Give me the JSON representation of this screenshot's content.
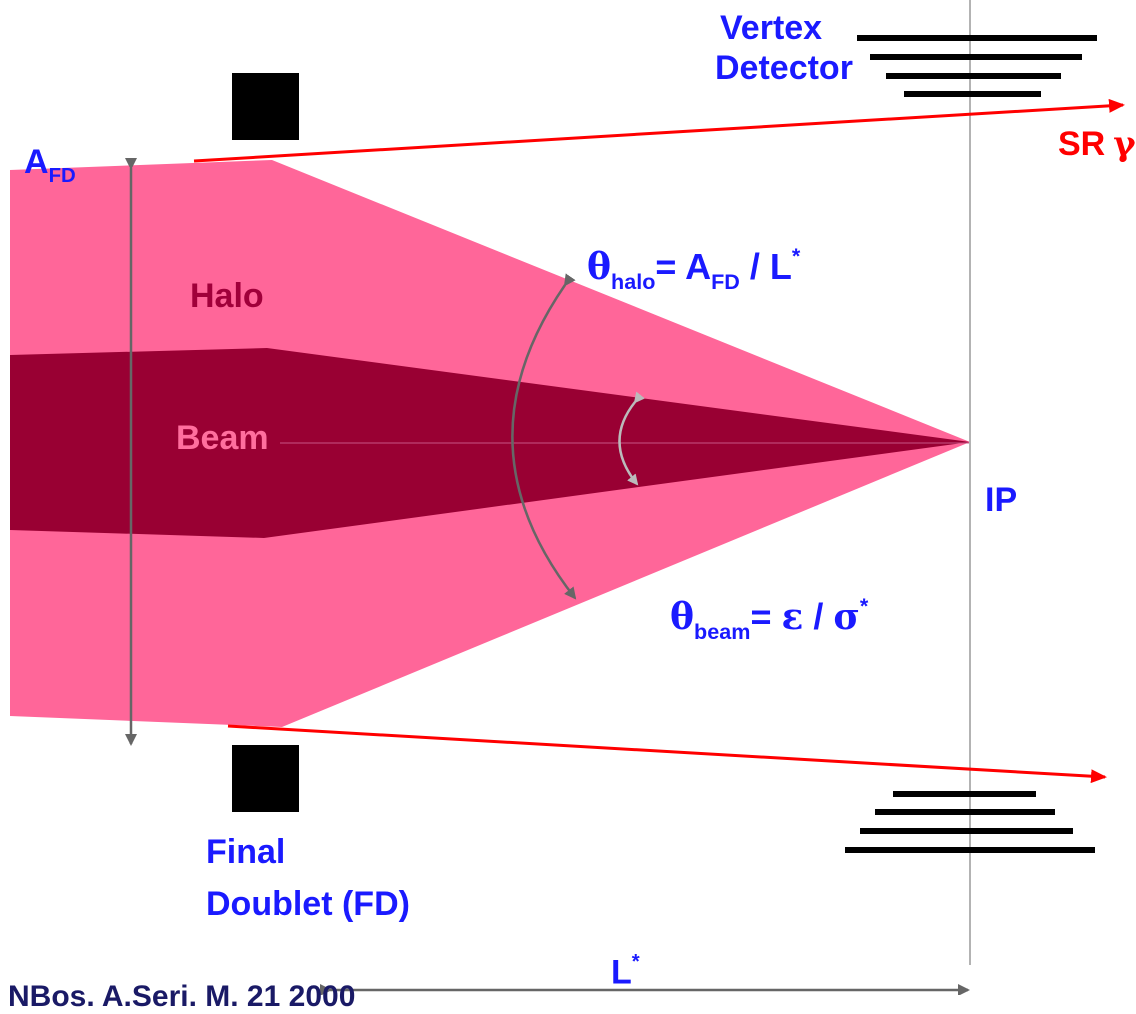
{
  "labels": {
    "vertex_line1": "Vertex",
    "vertex_line2": "Detector",
    "a_fd_main": "A",
    "a_fd_sub": "FD",
    "sr_text": "SR",
    "sr_gamma": "γ",
    "halo": "Halo",
    "beam": "Beam",
    "ip": "IP",
    "theta_halo_sym": "θ",
    "theta_halo_sub": "halo",
    "theta_halo_eq": "= A",
    "theta_halo_eq_sub": "FD",
    "theta_halo_tail": " / L",
    "theta_halo_sup": "*",
    "theta_beam_sym": "θ",
    "theta_beam_sub": "beam",
    "theta_beam_eq": "= ",
    "theta_beam_eps": "ε",
    "theta_beam_slash": " / ",
    "theta_beam_sigma": "σ",
    "theta_beam_sup": "*",
    "final_line1": "Final",
    "final_line2": "Doublet (FD)",
    "lstar_main": "L",
    "lstar_sup": "*",
    "footer": "NBos. A.Seri. M.  21 2000"
  },
  "colors": {
    "halo_fill": "#ff6699",
    "beam_fill": "#990033",
    "halo_text": "#a0003a",
    "beam_text": "#ff6f9e",
    "label_blue": "#1a1aff",
    "sr_red": "#ff0000",
    "ip_line": "#b3b3b3",
    "arrow_gray": "#666666",
    "arrow_light": "#bbbbbb",
    "magnet": "#000000"
  }
}
